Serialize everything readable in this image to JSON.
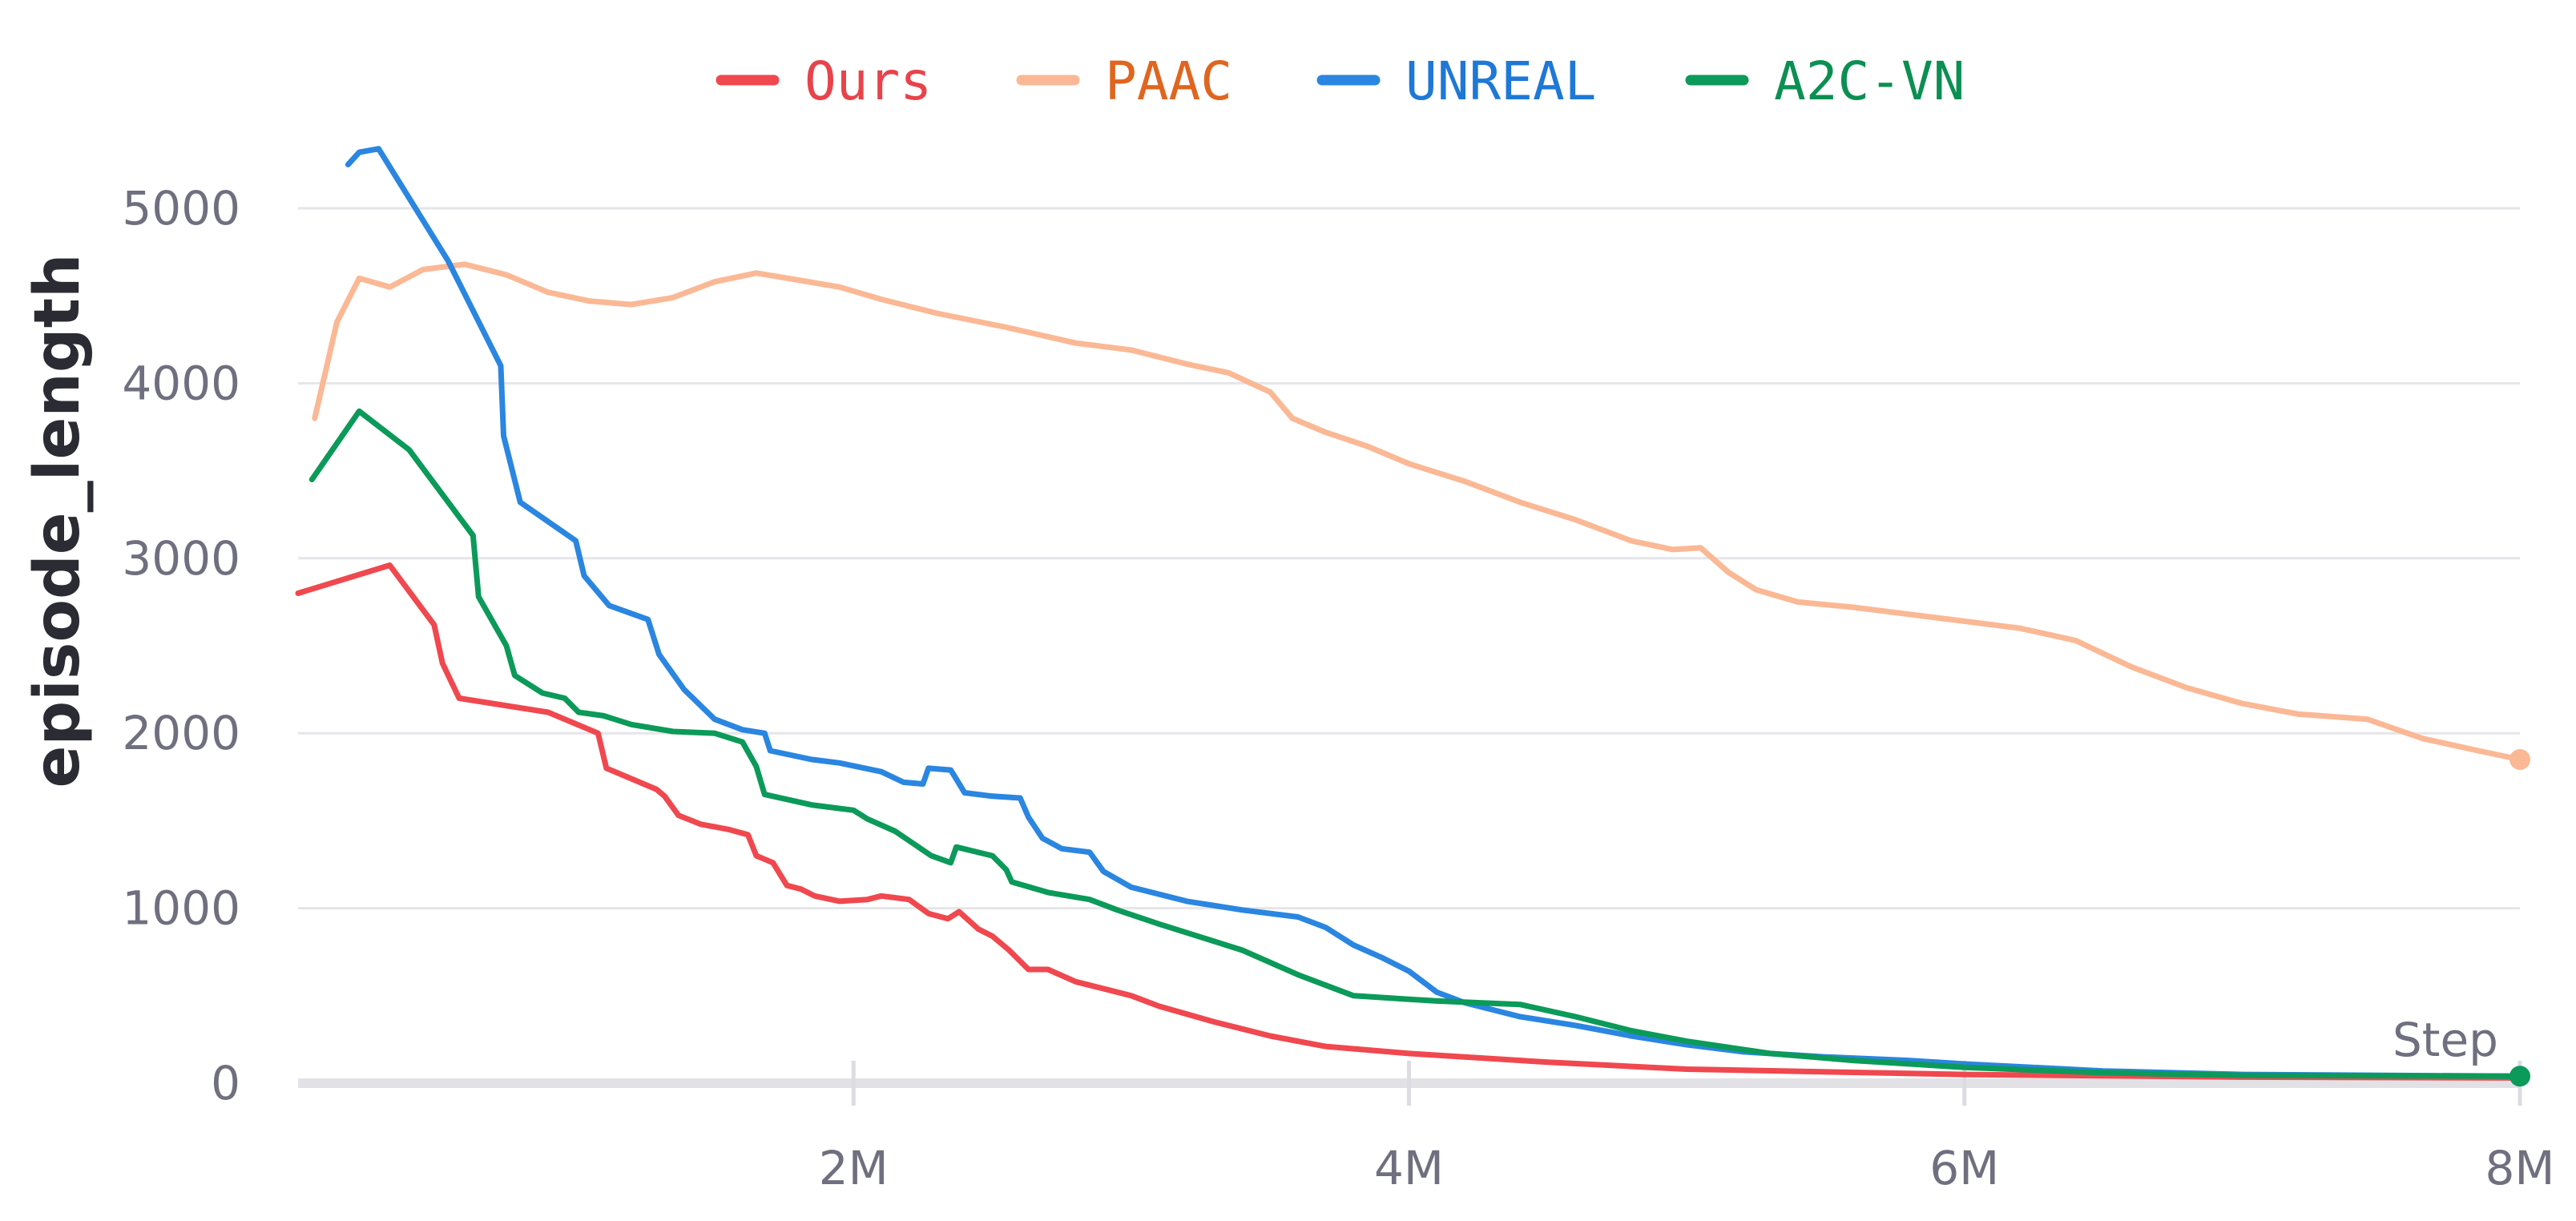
{
  "chart_data": {
    "type": "line",
    "title": "",
    "xlabel": "Step",
    "ylabel": "episode_length",
    "xlim": [
      0,
      8000000
    ],
    "ylim": [
      0,
      5400
    ],
    "grid": true,
    "legend_position": "top-center",
    "x_ticks": [
      {
        "value": 2000000,
        "label": "2M"
      },
      {
        "value": 4000000,
        "label": "4M"
      },
      {
        "value": 6000000,
        "label": "6M"
      },
      {
        "value": 8000000,
        "label": "8M"
      }
    ],
    "y_ticks": [
      {
        "value": 0,
        "label": "0"
      },
      {
        "value": 1000,
        "label": "1000"
      },
      {
        "value": 2000,
        "label": "2000"
      },
      {
        "value": 3000,
        "label": "3000"
      },
      {
        "value": 4000,
        "label": "4000"
      },
      {
        "value": 5000,
        "label": "5000"
      }
    ],
    "series": [
      {
        "name": "Ours",
        "color": "#f0484f",
        "legend_text_color": "#e8434a",
        "end_marker": false,
        "points": [
          [
            0,
            2800
          ],
          [
            330000,
            2960
          ],
          [
            490000,
            2620
          ],
          [
            520000,
            2400
          ],
          [
            580000,
            2200
          ],
          [
            900000,
            2120
          ],
          [
            1080000,
            2000
          ],
          [
            1110000,
            1800
          ],
          [
            1200000,
            1740
          ],
          [
            1290000,
            1680
          ],
          [
            1320000,
            1640
          ],
          [
            1370000,
            1530
          ],
          [
            1450000,
            1480
          ],
          [
            1550000,
            1450
          ],
          [
            1620000,
            1420
          ],
          [
            1650000,
            1300
          ],
          [
            1710000,
            1260
          ],
          [
            1760000,
            1130
          ],
          [
            1810000,
            1110
          ],
          [
            1860000,
            1070
          ],
          [
            1950000,
            1040
          ],
          [
            2050000,
            1050
          ],
          [
            2100000,
            1070
          ],
          [
            2200000,
            1050
          ],
          [
            2270000,
            970
          ],
          [
            2340000,
            940
          ],
          [
            2380000,
            980
          ],
          [
            2450000,
            880
          ],
          [
            2500000,
            840
          ],
          [
            2560000,
            760
          ],
          [
            2630000,
            650
          ],
          [
            2700000,
            650
          ],
          [
            2800000,
            580
          ],
          [
            3000000,
            500
          ],
          [
            3100000,
            440
          ],
          [
            3300000,
            350
          ],
          [
            3500000,
            270
          ],
          [
            3700000,
            210
          ],
          [
            4000000,
            170
          ],
          [
            4500000,
            120
          ],
          [
            5000000,
            80
          ],
          [
            6000000,
            50
          ],
          [
            7000000,
            35
          ],
          [
            8000000,
            30
          ]
        ]
      },
      {
        "name": "PAAC",
        "color": "#fbb895",
        "legend_text_color": "#e0651f",
        "end_marker": true,
        "points": [
          [
            60000,
            3800
          ],
          [
            140000,
            4350
          ],
          [
            220000,
            4600
          ],
          [
            330000,
            4550
          ],
          [
            450000,
            4650
          ],
          [
            600000,
            4680
          ],
          [
            750000,
            4620
          ],
          [
            900000,
            4520
          ],
          [
            1050000,
            4470
          ],
          [
            1200000,
            4450
          ],
          [
            1350000,
            4490
          ],
          [
            1500000,
            4580
          ],
          [
            1650000,
            4630
          ],
          [
            1800000,
            4590
          ],
          [
            1950000,
            4550
          ],
          [
            2100000,
            4480
          ],
          [
            2300000,
            4400
          ],
          [
            2550000,
            4320
          ],
          [
            2800000,
            4230
          ],
          [
            3000000,
            4190
          ],
          [
            3200000,
            4110
          ],
          [
            3350000,
            4060
          ],
          [
            3500000,
            3950
          ],
          [
            3580000,
            3800
          ],
          [
            3700000,
            3720
          ],
          [
            3850000,
            3640
          ],
          [
            4000000,
            3540
          ],
          [
            4200000,
            3440
          ],
          [
            4400000,
            3320
          ],
          [
            4600000,
            3220
          ],
          [
            4800000,
            3100
          ],
          [
            4950000,
            3050
          ],
          [
            5050000,
            3060
          ],
          [
            5150000,
            2920
          ],
          [
            5250000,
            2820
          ],
          [
            5400000,
            2750
          ],
          [
            5600000,
            2720
          ],
          [
            5800000,
            2680
          ],
          [
            6000000,
            2640
          ],
          [
            6200000,
            2600
          ],
          [
            6400000,
            2530
          ],
          [
            6600000,
            2380
          ],
          [
            6800000,
            2260
          ],
          [
            7000000,
            2170
          ],
          [
            7200000,
            2110
          ],
          [
            7450000,
            2080
          ],
          [
            7650000,
            1970
          ],
          [
            7850000,
            1900
          ],
          [
            8000000,
            1850
          ]
        ]
      },
      {
        "name": "UNREAL",
        "color": "#2a86e0",
        "legend_text_color": "#1e78d6",
        "end_marker": false,
        "points": [
          [
            180000,
            5250
          ],
          [
            220000,
            5320
          ],
          [
            290000,
            5340
          ],
          [
            540000,
            4700
          ],
          [
            730000,
            4100
          ],
          [
            740000,
            3700
          ],
          [
            800000,
            3320
          ],
          [
            1000000,
            3100
          ],
          [
            1030000,
            2900
          ],
          [
            1120000,
            2730
          ],
          [
            1260000,
            2650
          ],
          [
            1300000,
            2450
          ],
          [
            1390000,
            2250
          ],
          [
            1500000,
            2080
          ],
          [
            1600000,
            2020
          ],
          [
            1680000,
            2000
          ],
          [
            1700000,
            1900
          ],
          [
            1850000,
            1850
          ],
          [
            1950000,
            1830
          ],
          [
            2100000,
            1780
          ],
          [
            2180000,
            1720
          ],
          [
            2250000,
            1710
          ],
          [
            2270000,
            1800
          ],
          [
            2350000,
            1790
          ],
          [
            2400000,
            1660
          ],
          [
            2500000,
            1640
          ],
          [
            2600000,
            1630
          ],
          [
            2630000,
            1520
          ],
          [
            2680000,
            1400
          ],
          [
            2750000,
            1340
          ],
          [
            2850000,
            1320
          ],
          [
            2900000,
            1210
          ],
          [
            3000000,
            1120
          ],
          [
            3200000,
            1040
          ],
          [
            3400000,
            990
          ],
          [
            3600000,
            950
          ],
          [
            3700000,
            890
          ],
          [
            3800000,
            790
          ],
          [
            3900000,
            720
          ],
          [
            4000000,
            640
          ],
          [
            4100000,
            520
          ],
          [
            4200000,
            460
          ],
          [
            4400000,
            380
          ],
          [
            4600000,
            330
          ],
          [
            4800000,
            270
          ],
          [
            5000000,
            220
          ],
          [
            5200000,
            180
          ],
          [
            5500000,
            150
          ],
          [
            5800000,
            130
          ],
          [
            6000000,
            110
          ],
          [
            6500000,
            70
          ],
          [
            7000000,
            50
          ],
          [
            8000000,
            40
          ]
        ]
      },
      {
        "name": "A2C-VN",
        "color": "#0b9a59",
        "legend_text_color": "#0b8f52",
        "end_marker": true,
        "points": [
          [
            50000,
            3450
          ],
          [
            220000,
            3840
          ],
          [
            400000,
            3620
          ],
          [
            630000,
            3130
          ],
          [
            650000,
            2780
          ],
          [
            750000,
            2500
          ],
          [
            780000,
            2330
          ],
          [
            880000,
            2230
          ],
          [
            960000,
            2200
          ],
          [
            1010000,
            2120
          ],
          [
            1100000,
            2100
          ],
          [
            1200000,
            2050
          ],
          [
            1350000,
            2010
          ],
          [
            1500000,
            2000
          ],
          [
            1600000,
            1950
          ],
          [
            1650000,
            1810
          ],
          [
            1680000,
            1650
          ],
          [
            1850000,
            1590
          ],
          [
            2000000,
            1560
          ],
          [
            2050000,
            1510
          ],
          [
            2150000,
            1440
          ],
          [
            2280000,
            1300
          ],
          [
            2350000,
            1260
          ],
          [
            2370000,
            1350
          ],
          [
            2500000,
            1300
          ],
          [
            2550000,
            1220
          ],
          [
            2570000,
            1150
          ],
          [
            2700000,
            1090
          ],
          [
            2850000,
            1050
          ],
          [
            2950000,
            990
          ],
          [
            3100000,
            910
          ],
          [
            3200000,
            860
          ],
          [
            3400000,
            760
          ],
          [
            3600000,
            620
          ],
          [
            3700000,
            560
          ],
          [
            3800000,
            500
          ],
          [
            4000000,
            480
          ],
          [
            4100000,
            470
          ],
          [
            4400000,
            450
          ],
          [
            4600000,
            380
          ],
          [
            4800000,
            300
          ],
          [
            5000000,
            240
          ],
          [
            5300000,
            170
          ],
          [
            5600000,
            130
          ],
          [
            6000000,
            90
          ],
          [
            6500000,
            60
          ],
          [
            7000000,
            45
          ],
          [
            8000000,
            40
          ]
        ]
      }
    ]
  }
}
